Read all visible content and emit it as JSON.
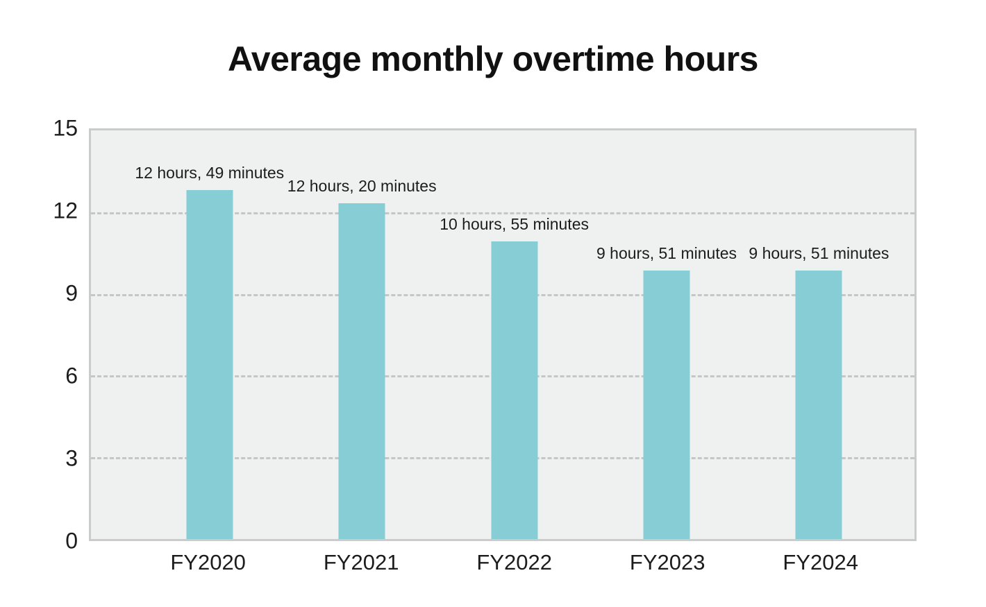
{
  "chart_data": {
    "type": "bar",
    "title": "Average monthly overtime hours",
    "categories": [
      "FY2020",
      "FY2021",
      "FY2022",
      "FY2023",
      "FY2024"
    ],
    "values": [
      12.817,
      12.333,
      10.917,
      9.85,
      9.85
    ],
    "value_labels": [
      "12 hours, 49 minutes",
      "12 hours, 20 minutes",
      "10 hours, 55 minutes",
      "9 hours, 51 minutes",
      "9 hours, 51 minutes"
    ],
    "xlabel": "",
    "ylabel": "",
    "ylim": [
      0,
      15
    ],
    "yticks": [
      15,
      12,
      9,
      6,
      3,
      0
    ],
    "gridlines": {
      "style": "dashed",
      "orientation": "horizontal",
      "at": [
        12,
        9,
        6,
        3
      ]
    },
    "legend": "none",
    "colors": {
      "bar": "#87cdd5",
      "plot_background": "#eef1f0",
      "plot_border": "#c9cccb",
      "gridline": "#c3c7c6",
      "text": "#1c1c1c",
      "page_background": "#ffffff"
    }
  }
}
